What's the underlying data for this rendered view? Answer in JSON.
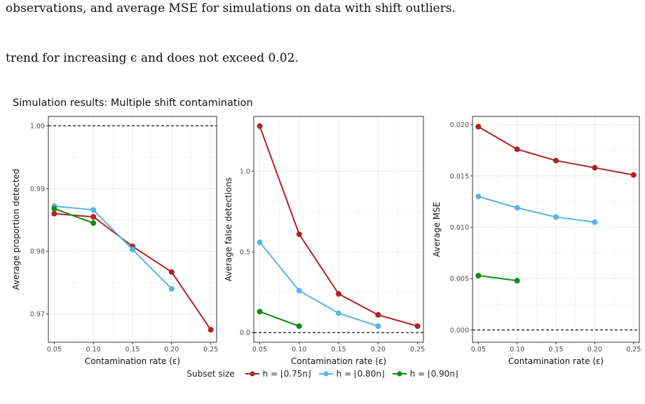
{
  "text": {
    "line1": "observations, and average MSE for simulations on data with shift outliers.",
    "line2": "trend for increasing ϵ and does not exceed 0.02."
  },
  "figure_title": "Simulation results: Multiple shift contamination",
  "legend": {
    "title": "Subset size",
    "entries": [
      "h = ⌊0.75n⌋",
      "h = ⌊0.80n⌋",
      "h = ⌊0.90n⌋"
    ]
  },
  "colors": {
    "h75": "#b22222",
    "h80": "#5ab4e5",
    "h90": "#138a13",
    "grid": "#ebebeb",
    "refline": "#000000"
  },
  "chart_data": [
    {
      "type": "line",
      "xlabel": "Contamination rate (ε)",
      "ylabel": "Average proportion detected",
      "ylim": [
        0.9655,
        1.0015
      ],
      "yticks": [
        0.97,
        0.98,
        0.99,
        1.0
      ],
      "ytick_labels": [
        "0.97",
        "0.98",
        "0.99",
        "1.00"
      ],
      "xlim": [
        0.0425,
        0.2575
      ],
      "xticks": [
        0.05,
        0.1,
        0.15,
        0.2,
        0.25
      ],
      "xtick_labels": [
        "0.05",
        "0.10",
        "0.15",
        "0.20",
        "0.25"
      ],
      "refline": 1.0,
      "grid": true,
      "series": [
        {
          "name": "h = ⌊0.75n⌋",
          "color_key": "h75",
          "x": [
            0.05,
            0.1,
            0.15,
            0.2,
            0.25
          ],
          "y": [
            0.986,
            0.9855,
            0.9808,
            0.9767,
            0.9675
          ]
        },
        {
          "name": "h = ⌊0.80n⌋",
          "color_key": "h80",
          "x": [
            0.05,
            0.1,
            0.15,
            0.2
          ],
          "y": [
            0.9872,
            0.9866,
            0.9803,
            0.974
          ]
        },
        {
          "name": "h = ⌊0.90n⌋",
          "color_key": "h90",
          "x": [
            0.05,
            0.1
          ],
          "y": [
            0.9868,
            0.9845
          ]
        }
      ]
    },
    {
      "type": "line",
      "xlabel": "Contamination rate (ε)",
      "ylabel": "Average false detections",
      "ylim": [
        -0.06,
        1.34
      ],
      "yticks": [
        0.0,
        0.5,
        1.0
      ],
      "ytick_labels": [
        "0.0",
        "0.5",
        "1.0"
      ],
      "xlim": [
        0.0425,
        0.2575
      ],
      "xticks": [
        0.05,
        0.1,
        0.15,
        0.2,
        0.25
      ],
      "xtick_labels": [
        "0.05",
        "0.10",
        "0.15",
        "0.20",
        "0.25"
      ],
      "refline": 0.0,
      "grid": true,
      "series": [
        {
          "name": "h = ⌊0.75n⌋",
          "color_key": "h75",
          "x": [
            0.05,
            0.1,
            0.15,
            0.2,
            0.25
          ],
          "y": [
            1.28,
            0.61,
            0.24,
            0.11,
            0.04
          ]
        },
        {
          "name": "h = ⌊0.80n⌋",
          "color_key": "h80",
          "x": [
            0.05,
            0.1,
            0.15,
            0.2
          ],
          "y": [
            0.56,
            0.26,
            0.12,
            0.04
          ]
        },
        {
          "name": "h = ⌊0.90n⌋",
          "color_key": "h90",
          "x": [
            0.05,
            0.1
          ],
          "y": [
            0.13,
            0.04
          ]
        }
      ]
    },
    {
      "type": "line",
      "xlabel": "Contamination rate (ε)",
      "ylabel": "Average MSE",
      "ylim": [
        -0.0012,
        0.0208
      ],
      "yticks": [
        0.0,
        0.005,
        0.01,
        0.015,
        0.02
      ],
      "ytick_labels": [
        "0.000",
        "0.005",
        "0.010",
        "0.015",
        "0.020"
      ],
      "xlim": [
        0.0425,
        0.2575
      ],
      "xticks": [
        0.05,
        0.1,
        0.15,
        0.2,
        0.25
      ],
      "xtick_labels": [
        "0.05",
        "0.10",
        "0.15",
        "0.20",
        "0.25"
      ],
      "refline": 0.0,
      "grid": true,
      "series": [
        {
          "name": "h = ⌊0.75n⌋",
          "color_key": "h75",
          "x": [
            0.05,
            0.1,
            0.15,
            0.2,
            0.25
          ],
          "y": [
            0.0198,
            0.0176,
            0.0165,
            0.0158,
            0.0151
          ]
        },
        {
          "name": "h = ⌊0.80n⌋",
          "color_key": "h80",
          "x": [
            0.05,
            0.1,
            0.15,
            0.2
          ],
          "y": [
            0.013,
            0.0119,
            0.011,
            0.0105
          ]
        },
        {
          "name": "h = ⌊0.90n⌋",
          "color_key": "h90",
          "x": [
            0.05,
            0.1
          ],
          "y": [
            0.0053,
            0.0048
          ]
        }
      ]
    }
  ]
}
